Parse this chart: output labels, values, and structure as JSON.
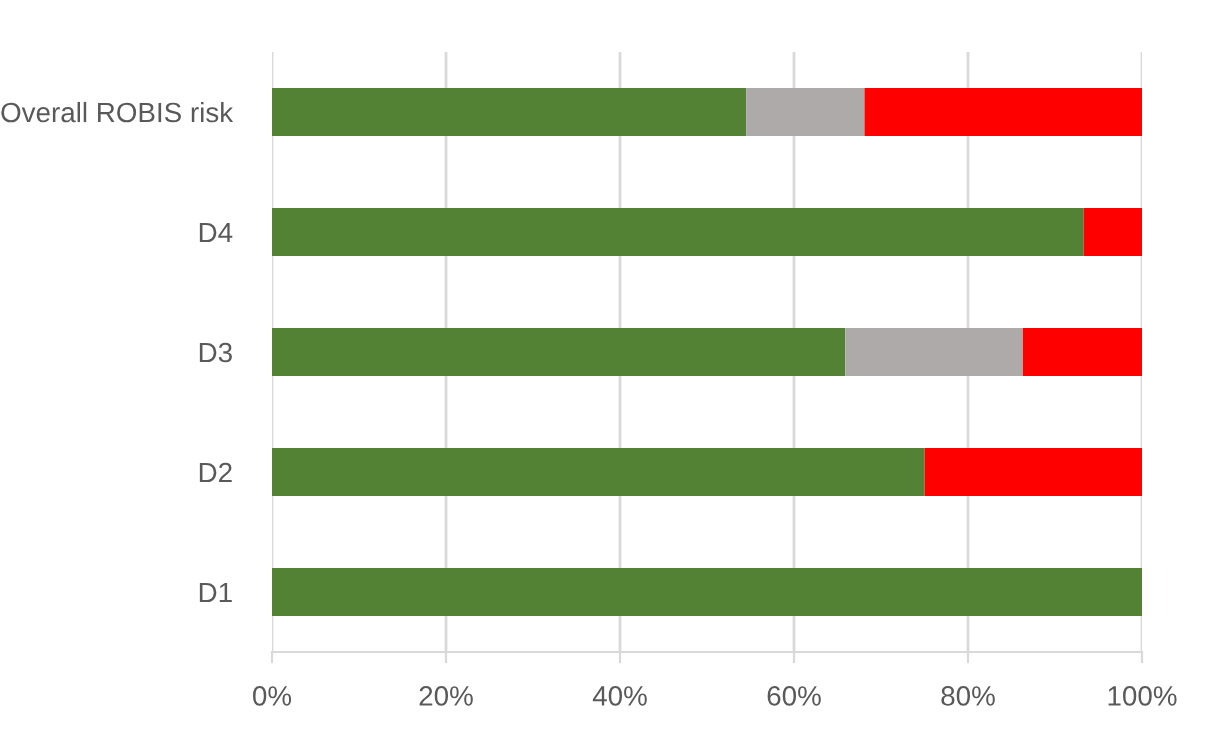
{
  "chart_data": {
    "type": "bar",
    "orientation": "horizontal",
    "stacked": true,
    "categories": [
      "Overall ROBIS risk",
      "D4",
      "D3",
      "D2",
      "D1"
    ],
    "series": [
      {
        "color": "#548235",
        "values": [
          54.5,
          93.3,
          65.9,
          75,
          100
        ]
      },
      {
        "color": "#aeaaaa",
        "values": [
          13.6,
          0,
          20.4,
          0,
          0
        ]
      },
      {
        "color": "#ff0000",
        "values": [
          31.9,
          6.7,
          13.7,
          25,
          0
        ]
      }
    ],
    "xlim": [
      0,
      100
    ],
    "xticks": [
      {
        "value": 0,
        "label": "0%"
      },
      {
        "value": 20,
        "label": "20%"
      },
      {
        "value": 40,
        "label": "40%"
      },
      {
        "value": 60,
        "label": "60%"
      },
      {
        "value": 80,
        "label": "80%"
      },
      {
        "value": 100,
        "label": "100%"
      }
    ],
    "grid": "x",
    "legend": false
  }
}
